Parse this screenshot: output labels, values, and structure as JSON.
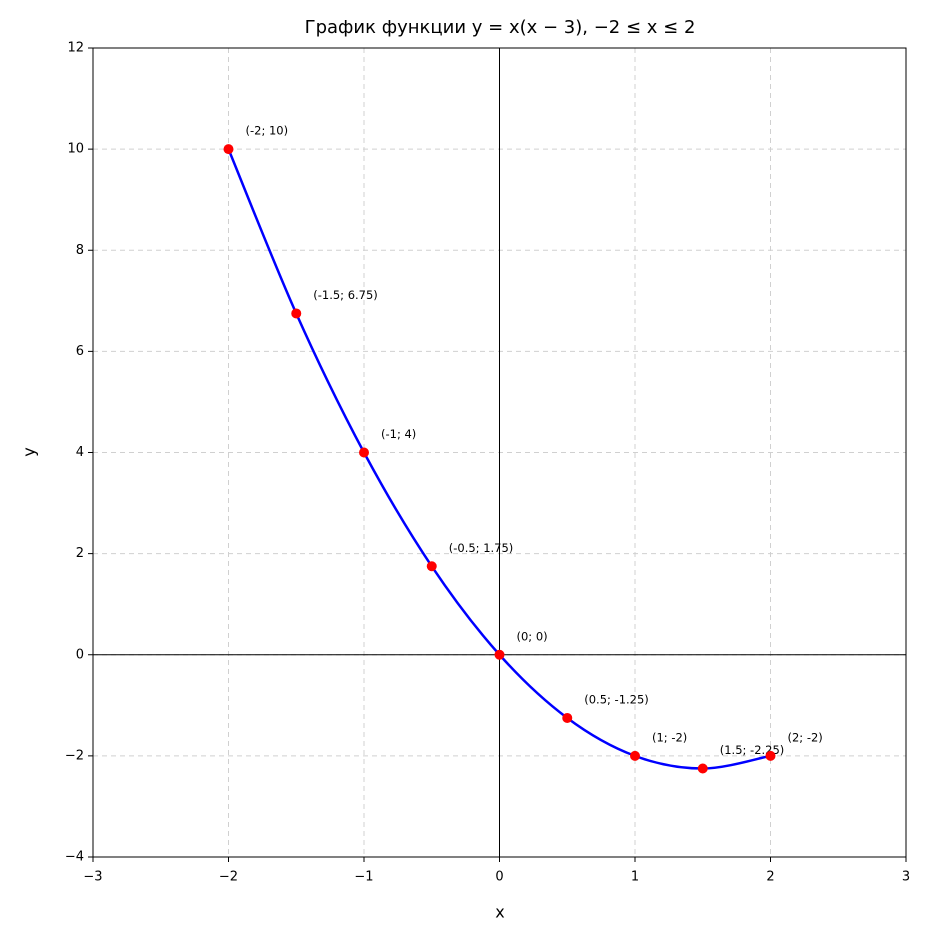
{
  "chart_data": {
    "type": "line",
    "title": "График функции y = x(x − 3), −2 ≤ x ≤ 2",
    "x_label": "x",
    "y_label": "y",
    "x": [
      -2,
      -1.5,
      -1,
      -0.5,
      0,
      0.5,
      1,
      1.5,
      2
    ],
    "values": [
      10,
      6.75,
      4,
      1.75,
      0,
      -1.25,
      -2,
      -2.25,
      -2
    ],
    "value_labels": [
      "(-2; 10)",
      "(-1.5; 6.75)",
      "(-1; 4)",
      "(-0.5; 1.75)",
      "(0; 0)",
      "(0.5; -1.25)",
      "(1; -2)",
      "(1.5; -2.25)",
      "(2; -2)"
    ],
    "line_color": "#0000ff",
    "point_color": "#ff0000",
    "xlim": [
      -3,
      3
    ],
    "xticks": [
      {
        "value": -3,
        "label": "−3"
      },
      {
        "value": -2,
        "label": "−2"
      },
      {
        "value": -1,
        "label": "−1"
      },
      0,
      1,
      2,
      3
    ],
    "ylim": [
      -4,
      12
    ],
    "yticks": [
      {
        "value": -4,
        "label": "−4"
      },
      {
        "value": -2,
        "label": "−2"
      },
      0,
      2,
      4,
      6,
      8,
      10,
      12
    ],
    "grid": true,
    "zero_lines": true
  }
}
